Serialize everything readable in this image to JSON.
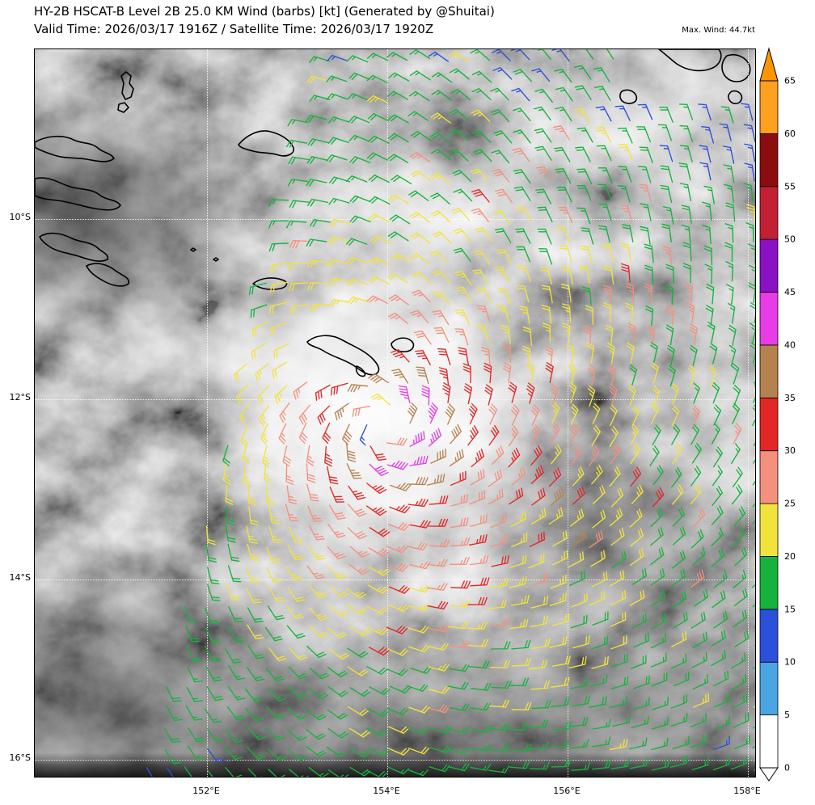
{
  "header": {
    "title": "HY-2B HSCAT-B Level 2B 25.0 KM Wind (barbs) [kt] (Generated by @Shuitai)",
    "subtitle": "Valid Time: 2026/03/17 1916Z / Satellite Time: 2026/03/17 1920Z",
    "max_wind": "Max. Wind: 44.7kt"
  },
  "chart_data": {
    "type": "wind-barb-satellite-map",
    "instrument": "HY-2B HSCAT-B Level 2B 25.0 KM Wind (barbs)",
    "units": "kt",
    "valid_time": "2026/03/17 1916Z",
    "satellite_time": "2026/03/17 1920Z",
    "max_wind_kt": 44.7,
    "extent": {
      "lon_min": 150.09,
      "lon_max": 158.1,
      "lat_min": -16.21,
      "lat_max": -8.12
    },
    "x_axis": {
      "ticks": [
        {
          "value": 152,
          "label": "152°E"
        },
        {
          "value": 154,
          "label": "154°E"
        },
        {
          "value": 156,
          "label": "156°E"
        },
        {
          "value": 158,
          "label": "158°E"
        }
      ]
    },
    "y_axis": {
      "ticks": [
        {
          "value": -10,
          "label": "10°S"
        },
        {
          "value": -12,
          "label": "12°S"
        },
        {
          "value": -14,
          "label": "14°S"
        },
        {
          "value": -16,
          "label": "16°S"
        }
      ]
    },
    "colorbar": {
      "units": "kt",
      "levels": [
        0,
        5,
        10,
        15,
        20,
        25,
        30,
        35,
        40,
        45,
        50,
        55,
        60,
        65
      ],
      "colors": [
        "#ffffff",
        "#4aa5e2",
        "#2b50d9",
        "#16b33c",
        "#f2e33c",
        "#f5907e",
        "#e32726",
        "#b5824f",
        "#e73ce7",
        "#8a12c4",
        "#c22033",
        "#8c0d10",
        "#ffa01e"
      ],
      "over_color": "#ff9500",
      "under_color": "#ffffff"
    },
    "cyclone": {
      "center_lon": 153.95,
      "center_lat": -12.28,
      "vmax_kt": 44.7,
      "rmax_deg": 0.35,
      "profile_exp": 0.42,
      "inflow_deg": 25,
      "rotation": "clockwise-southern-hemisphere"
    },
    "swath": {
      "left_edge_lon_at_8s": 153.3,
      "left_edge_slope_lon_per_lat": 0.25
    },
    "barb_spacing_deg": 0.2245,
    "land_boxes": [
      [
        153.0,
        -11.78,
        154.02,
        -11.14
      ],
      [
        154.02,
        -11.52,
        154.38,
        -11.16
      ],
      [
        156.55,
        -8.85,
        158.12,
        -8.1
      ]
    ],
    "coastlines": [
      "M113,28 l6,5 l-2,9 l5,7 l-3,10 l-7,3 l-4,-8 l2,-12 l-3,-9 z",
      "M104,68 l7,-2 l5,6 l-6,6 l-7,-3 z",
      "M0,115 c14,-8 34,-10 48,-3 c10,5 22,3 30,10 c6,6 16,6 20,13 c-8,7 -22,3 -34,1 c-14,-2 -28,-1 -40,-5 c-9,-3 -18,-6 -24,-10 z",
      "M0,160 c18,-4 30,6 44,10 c12,4 26,2 36,10 c8,7 20,5 26,13 c-6,8 -20,6 -32,4 c-16,-3 -30,-8 -46,-10 c-10,-1 -20,-2 -28,-6 z",
      "M6,232 c12,-8 28,-4 40,2 c10,5 24,4 32,12 c5,5 14,7 12,14 c-10,5 -24,0 -36,-4 c-12,-4 -26,-5 -36,-12 c-6,-4 -10,-8 -12,-12 z",
      "M64,268 c12,-6 26,-2 36,6 c8,6 18,8 16,16 c-8,6 -22,2 -32,-4 c-9,-5 -16,-10 -20,-18 z",
      "M252,118 c10,-12 26,-20 40,-16 c12,3 24,10 28,20 c2,7 -8,12 -18,9 c-12,-4 -22,-2 -32,-5 c-8,-2 -16,-4 -18,-8 z",
      "M270,290 c10,-8 26,-9 38,-4 c6,3 4,8 -4,10 c-10,2 -24,2 -34,-6 z",
      "M337,362 c12,-10 30,-10 44,-2 c12,7 26,12 36,22 c6,6 12,14 6,19 c-8,5 -18,-2 -26,-8 c-12,-9 -28,-12 -40,-20 c-8,-5 -18,-6 -20,-11 z",
      "M398,392 c6,2 12,8 10,12 c-6,2 -12,-4 -10,-12 z",
      "M441,364 c7,-8 18,-9 25,-3 c5,5 2,12 -7,13 c-9,1 -18,-3 -18,-10 z",
      "M772,0 L846,0 c6,8 2,20 -10,24 c-14,5 -30,2 -42,-6 c-8,-6 -14,-12 -22,-18 z",
      "M856,8 c12,-4 24,2 28,12 c3,10 -4,20 -16,20 c-10,0 -18,-8 -18,-18 c0,-6 2,-10 6,-14 z",
      "M726,52 c8,-4 16,0 18,6 c2,7 -6,11 -14,8 c-6,-2 -8,-9 -4,-14 z",
      "M862,52 c8,-2 14,4 12,10 c-2,6 -10,7 -14,2 c-4,-5 -2,-9 2,-12 z",
      "M196,246 l3,2 l-3,2 l-3,-2 z",
      "M224,258 l3,2 l-3,2 l-3,-2 z"
    ]
  }
}
